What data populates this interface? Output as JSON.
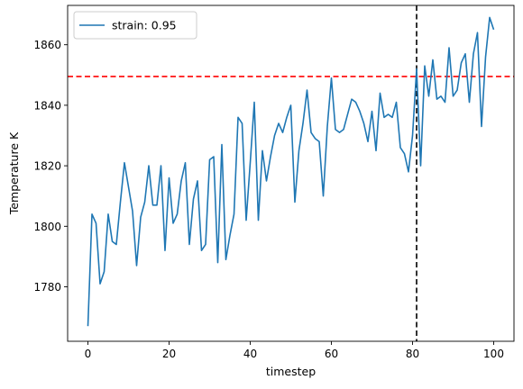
{
  "chart_data": {
    "type": "line",
    "xlabel": "timestep",
    "ylabel": "Temperature K",
    "xlim": [
      -5,
      105
    ],
    "ylim": [
      1762,
      1873
    ],
    "xticks": [
      0,
      20,
      40,
      60,
      80,
      100
    ],
    "yticks": [
      1780,
      1800,
      1820,
      1840,
      1860
    ],
    "grid": false,
    "legend_position": "upper-left",
    "series": [
      {
        "name": "strain: 0.95",
        "color": "#1f77b4",
        "x": [
          0,
          1,
          2,
          3,
          4,
          5,
          6,
          7,
          8,
          9,
          10,
          11,
          12,
          13,
          14,
          15,
          16,
          17,
          18,
          19,
          20,
          21,
          22,
          23,
          24,
          25,
          26,
          27,
          28,
          29,
          30,
          31,
          32,
          33,
          34,
          35,
          36,
          37,
          38,
          39,
          40,
          41,
          42,
          43,
          44,
          45,
          46,
          47,
          48,
          49,
          50,
          51,
          52,
          53,
          54,
          55,
          56,
          57,
          58,
          59,
          60,
          61,
          62,
          63,
          64,
          65,
          66,
          67,
          68,
          69,
          70,
          71,
          72,
          73,
          74,
          75,
          76,
          77,
          78,
          79,
          80,
          81,
          82,
          83,
          84,
          85,
          86,
          87,
          88,
          89,
          90,
          91,
          92,
          93,
          94,
          95,
          96,
          97,
          98,
          99,
          100
        ],
        "values": [
          1767,
          1804,
          1801,
          1781,
          1785,
          1804,
          1795,
          1794,
          1808,
          1821,
          1813,
          1805,
          1787,
          1803,
          1808,
          1820,
          1807,
          1807,
          1820,
          1792,
          1816,
          1801,
          1804,
          1815,
          1821,
          1794,
          1809,
          1815,
          1792,
          1794,
          1822,
          1823,
          1788,
          1827,
          1789,
          1797,
          1804,
          1836,
          1834,
          1802,
          1821,
          1841,
          1802,
          1825,
          1815,
          1823,
          1830,
          1834,
          1831,
          1836,
          1840,
          1808,
          1825,
          1834,
          1845,
          1831,
          1829,
          1828,
          1810,
          1833,
          1849,
          1832,
          1831,
          1832,
          1837,
          1842,
          1841,
          1838,
          1834,
          1828,
          1838,
          1825,
          1844,
          1836,
          1837,
          1836,
          1841,
          1826,
          1824,
          1818,
          1830,
          1852,
          1820,
          1853,
          1843,
          1855,
          1842,
          1843,
          1841,
          1859,
          1843,
          1845,
          1854,
          1857,
          1841,
          1857,
          1864,
          1833,
          1856,
          1869,
          1865
        ]
      }
    ],
    "reference_lines": [
      {
        "orientation": "horizontal",
        "value": 1849.5,
        "color": "#ff0000",
        "style": "dashed"
      },
      {
        "orientation": "vertical",
        "value": 81,
        "color": "#000000",
        "style": "dashed"
      }
    ]
  }
}
